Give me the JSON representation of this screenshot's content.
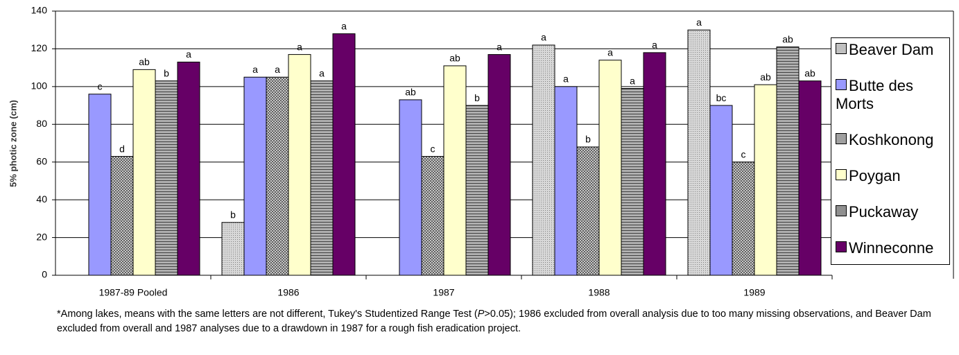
{
  "chart_data": {
    "type": "bar",
    "y_label": "5% photic zone (cm)",
    "categories": [
      "1987-89 Pooled",
      "1986",
      "1987",
      "1988",
      "1989"
    ],
    "series": [
      {
        "name": "Beaver Dam",
        "color": "#c0c0c0",
        "values": [
          null,
          28,
          null,
          122,
          130
        ],
        "letters": [
          null,
          "b",
          null,
          "a",
          "a"
        ]
      },
      {
        "name": "Butte des Morts",
        "color": "#9999ff",
        "values": [
          96,
          105,
          93,
          100,
          90
        ],
        "letters": [
          "c",
          "a",
          "ab",
          "a",
          "bc"
        ]
      },
      {
        "name": "Koshkonong",
        "color": "#a0a0a0",
        "values": [
          63,
          105,
          63,
          68,
          60
        ],
        "letters": [
          "d",
          "a",
          "c",
          "b",
          "c"
        ]
      },
      {
        "name": "Poygan",
        "color": "#ffffcc",
        "values": [
          109,
          117,
          111,
          114,
          101
        ],
        "letters": [
          "ab",
          "a",
          "ab",
          "a",
          "ab"
        ]
      },
      {
        "name": "Puckaway",
        "color": "#909090",
        "values": [
          103,
          103,
          90,
          99,
          121
        ],
        "letters": [
          "b",
          "a",
          "b",
          "a",
          "ab"
        ]
      },
      {
        "name": "Winneconne",
        "color": "#660066",
        "values": [
          113,
          128,
          117,
          118,
          103
        ],
        "letters": [
          "a",
          "a",
          "a",
          "a",
          "ab"
        ]
      }
    ],
    "ylim": [
      0,
      140
    ],
    "yticks": [
      0,
      20,
      40,
      60,
      80,
      100,
      120,
      140
    ],
    "grid": true,
    "legend": "right",
    "footnote": [
      "*Among lakes, means with the same letters are not different, Tukey's Studentized Range Test (",
      "P",
      ">0.05); 1986 excluded from overall analysis due to too many missing observations, and Beaver Dam excluded from overall and 1987 analyses due to a drawdown in 1987 for a rough fish eradication project."
    ]
  }
}
